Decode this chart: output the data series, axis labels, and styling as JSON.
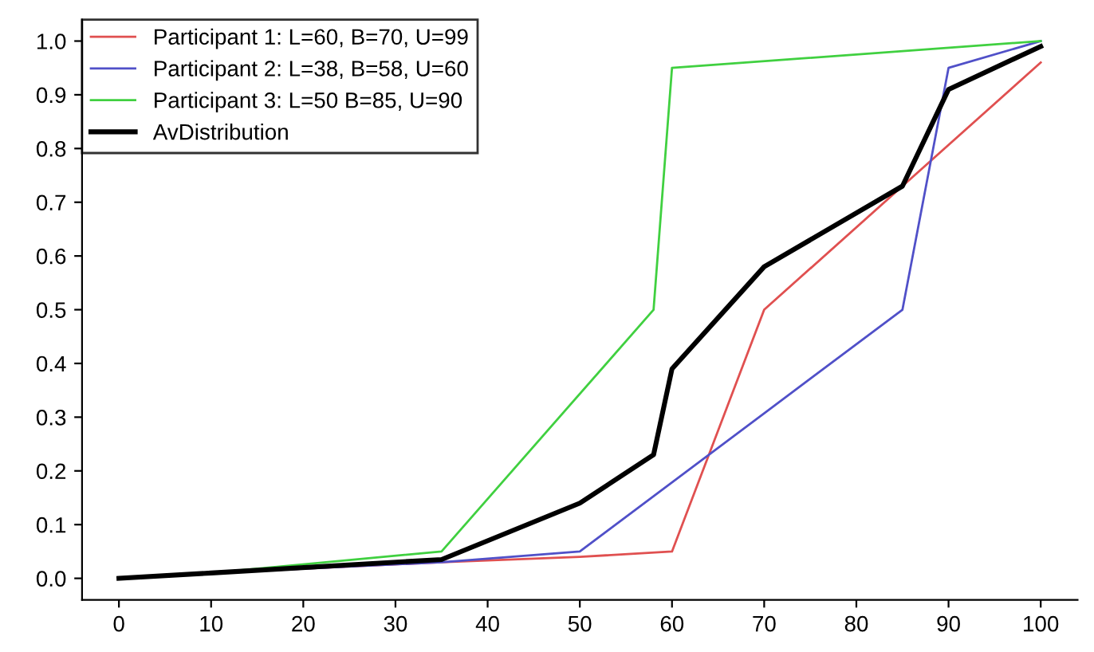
{
  "chart_data": {
    "type": "line",
    "series": [
      {
        "name": "Participant 1: L=60, B=70, U=99",
        "color": "#e05050",
        "x": [
          0,
          10,
          35,
          50,
          60,
          70,
          85,
          100
        ],
        "values": [
          0,
          0.01,
          0.03,
          0.04,
          0.05,
          0.5,
          0.73,
          0.96
        ]
      },
      {
        "name": "Participant 2: L=38, B=58, U=60",
        "color": "#5050c8",
        "x": [
          0,
          10,
          35,
          50,
          85,
          90,
          100
        ],
        "values": [
          0,
          0.01,
          0.03,
          0.05,
          0.5,
          0.95,
          1.0
        ]
      },
      {
        "name": "Participant 3: L=50 B=85, U=90",
        "color": "#40d040",
        "x": [
          0,
          10,
          35,
          58,
          60,
          100
        ],
        "values": [
          0,
          0.01,
          0.05,
          0.5,
          0.95,
          1.0
        ]
      },
      {
        "name": "AvDistribution",
        "color": "#000000",
        "x": [
          0,
          10,
          35,
          50,
          58,
          60,
          70,
          85,
          90,
          100
        ],
        "values": [
          0,
          0.01,
          0.035,
          0.14,
          0.23,
          0.39,
          0.58,
          0.73,
          0.91,
          0.99
        ]
      }
    ],
    "xlim": [
      -4,
      104
    ],
    "ylim": [
      -0.04,
      1.04
    ],
    "xticks": [
      0,
      10,
      20,
      30,
      40,
      50,
      60,
      70,
      80,
      90,
      100
    ],
    "yticks": [
      {
        "value": 0,
        "label": "0.0"
      },
      {
        "value": 0.1,
        "label": "0.1"
      },
      {
        "value": 0.2,
        "label": "0.2"
      },
      {
        "value": 0.3,
        "label": "0.3"
      },
      {
        "value": 0.4,
        "label": "0.4"
      },
      {
        "value": 0.5,
        "label": "0.5"
      },
      {
        "value": 0.6,
        "label": "0.6"
      },
      {
        "value": 0.7,
        "label": "0.7"
      },
      {
        "value": 0.8,
        "label": "0.8"
      },
      {
        "value": 0.9,
        "label": "0.9"
      },
      {
        "value": 1.0,
        "label": "1.0"
      }
    ],
    "legend": "top left",
    "grid": false
  }
}
